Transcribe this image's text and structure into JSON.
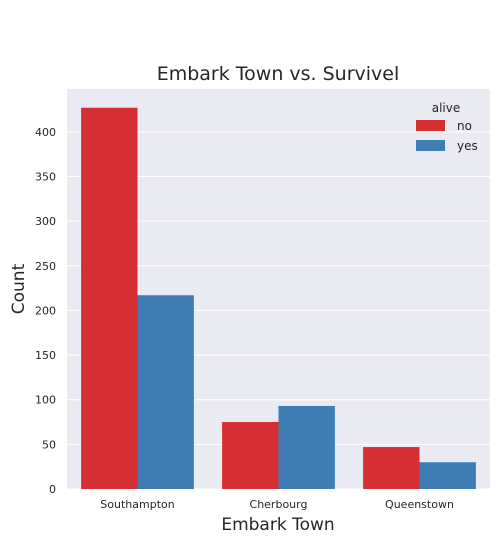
{
  "chart_data": {
    "type": "bar",
    "title": "Embark Town vs. Survivel",
    "xlabel": "Embark Town",
    "ylabel": "Count",
    "categories": [
      "Southampton",
      "Cherbourg",
      "Queenstown"
    ],
    "series": [
      {
        "name": "no",
        "values": [
          427,
          75,
          47
        ],
        "color": "#d62f33"
      },
      {
        "name": "yes",
        "values": [
          217,
          93,
          30
        ],
        "color": "#3f7db5"
      }
    ],
    "ylim": [
      0,
      448
    ],
    "yticks": [
      0,
      50,
      100,
      150,
      200,
      250,
      300,
      350,
      400
    ],
    "legend_title": "alive",
    "legend_position": "top-right",
    "grid": true,
    "background": "#eaeaf2"
  }
}
